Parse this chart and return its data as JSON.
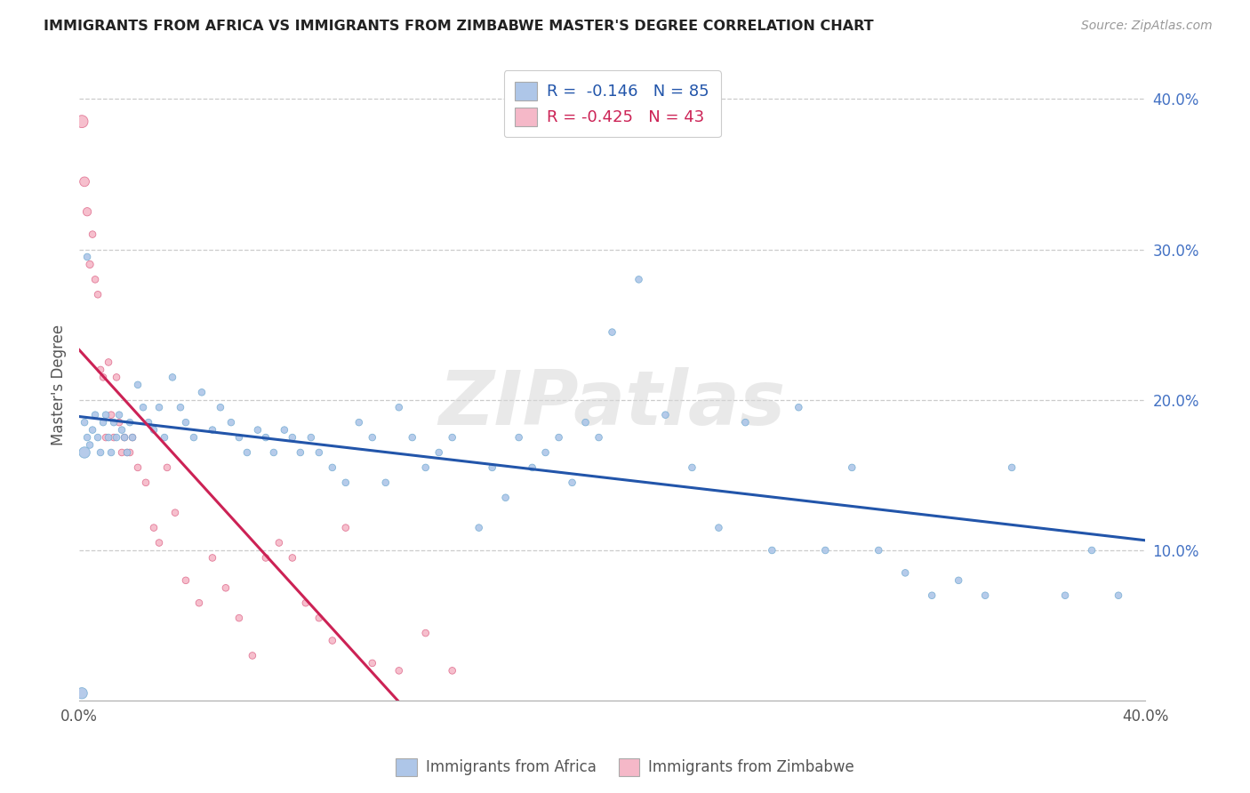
{
  "title": "IMMIGRANTS FROM AFRICA VS IMMIGRANTS FROM ZIMBABWE MASTER'S DEGREE CORRELATION CHART",
  "source": "Source: ZipAtlas.com",
  "ylabel": "Master's Degree",
  "xlim": [
    0.0,
    0.4
  ],
  "ylim": [
    0.0,
    0.42
  ],
  "yticks": [
    0.1,
    0.2,
    0.3,
    0.4
  ],
  "ytick_labels": [
    "10.0%",
    "20.0%",
    "30.0%",
    "40.0%"
  ],
  "xticks": [
    0.0,
    0.1,
    0.2,
    0.3,
    0.4
  ],
  "xtick_labels": [
    "0.0%",
    "",
    "",
    "",
    "40.0%"
  ],
  "watermark": "ZIPatlas",
  "africa_color": "#aec6e8",
  "africa_edge": "#7aafd4",
  "africa_line_color": "#2255aa",
  "zimbabwe_color": "#f5b8c8",
  "zimbabwe_edge": "#e07090",
  "zimbabwe_line_color": "#cc2255",
  "R_africa": -0.146,
  "N_africa": 85,
  "R_zimbabwe": -0.425,
  "N_zimbabwe": 43,
  "africa_x": [
    0.002,
    0.003,
    0.004,
    0.005,
    0.006,
    0.007,
    0.008,
    0.009,
    0.01,
    0.011,
    0.012,
    0.013,
    0.014,
    0.015,
    0.016,
    0.017,
    0.018,
    0.019,
    0.02,
    0.022,
    0.024,
    0.026,
    0.028,
    0.03,
    0.032,
    0.035,
    0.038,
    0.04,
    0.043,
    0.046,
    0.05,
    0.053,
    0.057,
    0.06,
    0.063,
    0.067,
    0.07,
    0.073,
    0.077,
    0.08,
    0.083,
    0.087,
    0.09,
    0.095,
    0.1,
    0.105,
    0.11,
    0.115,
    0.12,
    0.125,
    0.13,
    0.135,
    0.14,
    0.15,
    0.155,
    0.16,
    0.165,
    0.17,
    0.175,
    0.18,
    0.185,
    0.19,
    0.195,
    0.2,
    0.21,
    0.22,
    0.23,
    0.24,
    0.25,
    0.26,
    0.27,
    0.28,
    0.29,
    0.3,
    0.31,
    0.32,
    0.33,
    0.34,
    0.35,
    0.37,
    0.38,
    0.39,
    0.001,
    0.002,
    0.003
  ],
  "africa_y": [
    0.185,
    0.175,
    0.17,
    0.18,
    0.19,
    0.175,
    0.165,
    0.185,
    0.19,
    0.175,
    0.165,
    0.185,
    0.175,
    0.19,
    0.18,
    0.175,
    0.165,
    0.185,
    0.175,
    0.21,
    0.195,
    0.185,
    0.18,
    0.195,
    0.175,
    0.215,
    0.195,
    0.185,
    0.175,
    0.205,
    0.18,
    0.195,
    0.185,
    0.175,
    0.165,
    0.18,
    0.175,
    0.165,
    0.18,
    0.175,
    0.165,
    0.175,
    0.165,
    0.155,
    0.145,
    0.185,
    0.175,
    0.145,
    0.195,
    0.175,
    0.155,
    0.165,
    0.175,
    0.115,
    0.155,
    0.135,
    0.175,
    0.155,
    0.165,
    0.175,
    0.145,
    0.185,
    0.175,
    0.245,
    0.28,
    0.19,
    0.155,
    0.115,
    0.185,
    0.1,
    0.195,
    0.1,
    0.155,
    0.1,
    0.085,
    0.07,
    0.08,
    0.07,
    0.155,
    0.07,
    0.1,
    0.07,
    0.005,
    0.165,
    0.295
  ],
  "africa_sizes": [
    30,
    30,
    30,
    30,
    30,
    30,
    30,
    30,
    30,
    30,
    30,
    30,
    30,
    30,
    30,
    30,
    30,
    30,
    30,
    30,
    30,
    30,
    30,
    30,
    30,
    30,
    30,
    30,
    30,
    30,
    30,
    30,
    30,
    30,
    30,
    30,
    30,
    30,
    30,
    30,
    30,
    30,
    30,
    30,
    30,
    30,
    30,
    30,
    30,
    30,
    30,
    30,
    30,
    30,
    30,
    30,
    30,
    30,
    30,
    30,
    30,
    30,
    30,
    30,
    30,
    30,
    30,
    30,
    30,
    30,
    30,
    30,
    30,
    30,
    30,
    30,
    30,
    30,
    30,
    30,
    30,
    30,
    80,
    80,
    30
  ],
  "zimbabwe_x": [
    0.001,
    0.002,
    0.003,
    0.004,
    0.005,
    0.006,
    0.007,
    0.008,
    0.009,
    0.01,
    0.011,
    0.012,
    0.013,
    0.014,
    0.015,
    0.016,
    0.017,
    0.018,
    0.019,
    0.02,
    0.022,
    0.025,
    0.028,
    0.03,
    0.033,
    0.036,
    0.04,
    0.045,
    0.05,
    0.055,
    0.06,
    0.065,
    0.07,
    0.075,
    0.08,
    0.085,
    0.09,
    0.095,
    0.1,
    0.11,
    0.12,
    0.13,
    0.14
  ],
  "zimbabwe_y": [
    0.385,
    0.345,
    0.325,
    0.29,
    0.31,
    0.28,
    0.27,
    0.22,
    0.215,
    0.175,
    0.225,
    0.19,
    0.175,
    0.215,
    0.185,
    0.165,
    0.175,
    0.165,
    0.165,
    0.175,
    0.155,
    0.145,
    0.115,
    0.105,
    0.155,
    0.125,
    0.08,
    0.065,
    0.095,
    0.075,
    0.055,
    0.03,
    0.095,
    0.105,
    0.095,
    0.065,
    0.055,
    0.04,
    0.115,
    0.025,
    0.02,
    0.045,
    0.02
  ],
  "zimbabwe_sizes": [
    100,
    60,
    45,
    35,
    30,
    30,
    30,
    30,
    30,
    30,
    30,
    30,
    30,
    30,
    30,
    30,
    30,
    30,
    30,
    30,
    30,
    30,
    30,
    30,
    30,
    30,
    30,
    30,
    30,
    30,
    30,
    30,
    30,
    30,
    30,
    30,
    30,
    30,
    30,
    30,
    30,
    30,
    30
  ],
  "africa_line_x": [
    0.0,
    0.4
  ],
  "zimbabwe_line_x": [
    0.0,
    0.4
  ]
}
